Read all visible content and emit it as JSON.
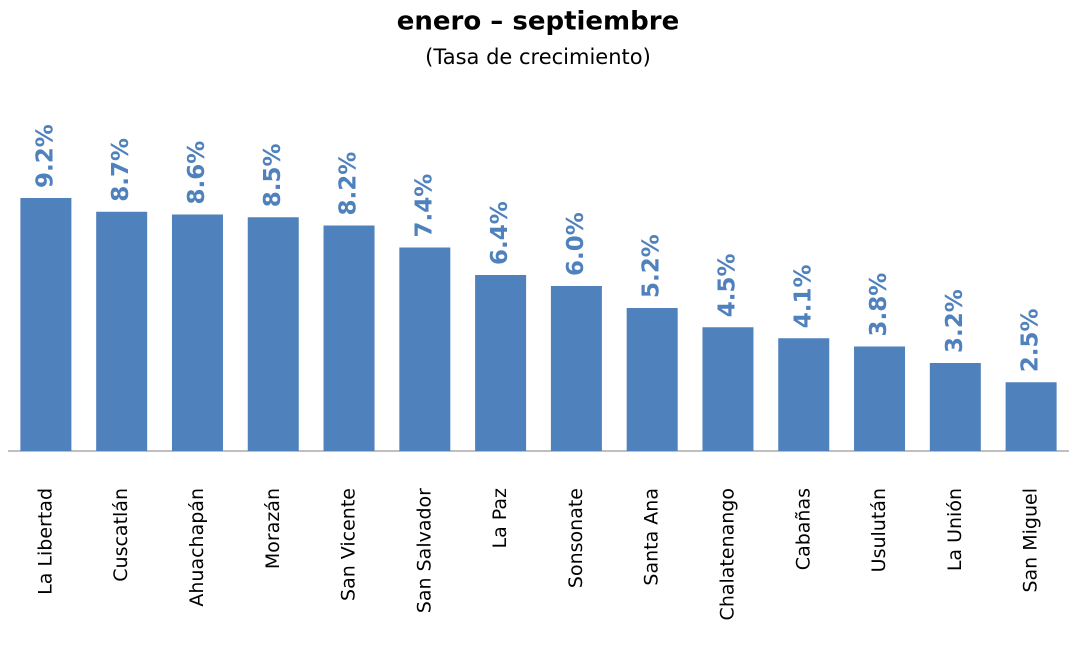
{
  "chart_data": {
    "type": "bar",
    "title": "enero – septiembre",
    "subtitle": "(Tasa de crecimiento)",
    "categories": [
      "La Libertad",
      "Cuscatlán",
      "Ahuachapán",
      "Morazán",
      "San Vicente",
      "San Salvador",
      "La Paz",
      "Sonsonate",
      "Santa Ana",
      "Chalatenango",
      "Cabañas",
      "Usulután",
      "La Unión",
      "San Miguel"
    ],
    "values": [
      9.2,
      8.7,
      8.6,
      8.5,
      8.2,
      7.4,
      6.4,
      6.0,
      5.2,
      4.5,
      4.1,
      3.8,
      3.2,
      2.5
    ],
    "value_labels": [
      "9.2%",
      "8.7%",
      "8.6%",
      "8.5%",
      "8.2%",
      "7.4%",
      "6.4%",
      "6.0%",
      "5.2%",
      "4.5%",
      "4.1%",
      "3.8%",
      "3.2%",
      "2.5%"
    ],
    "color": "#4f81bd",
    "ylim": [
      0,
      10
    ]
  }
}
